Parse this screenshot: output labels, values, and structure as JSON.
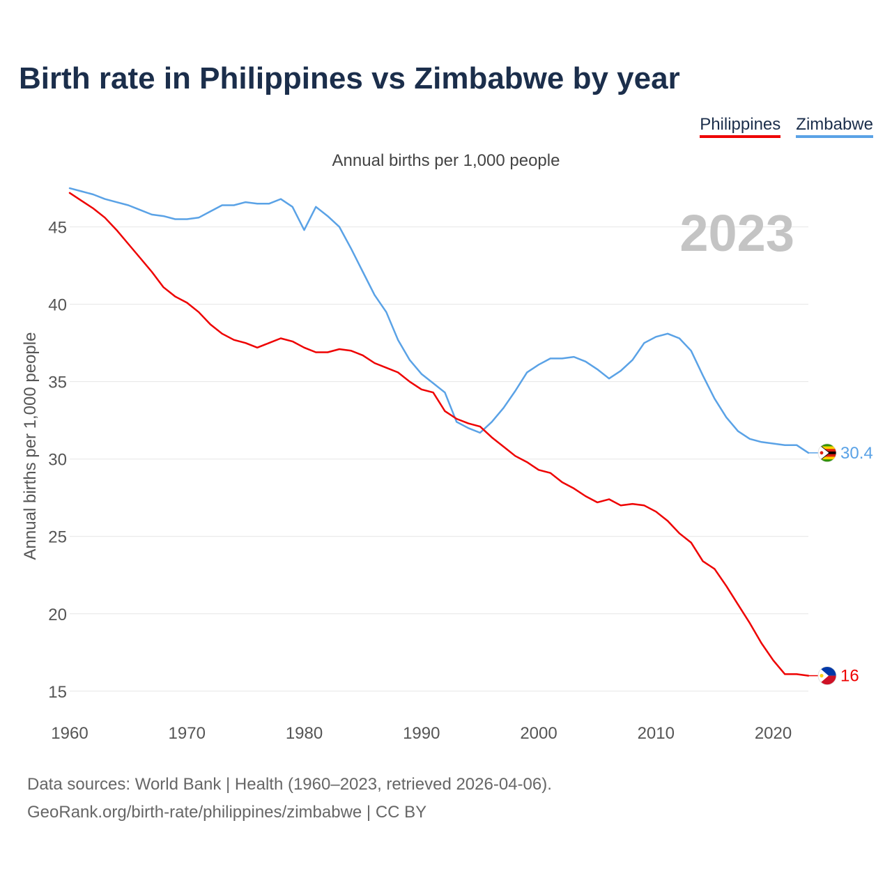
{
  "title": "Birth rate in Philippines vs Zimbabwe by year",
  "legend": {
    "philippines": "Philippines",
    "zimbabwe": "Zimbabwe"
  },
  "subtitle": "Annual births per 1,000 people",
  "year_badge": "2023",
  "source": {
    "line1": "Data sources: World Bank | Health (1960–2023, retrieved 2026-04-06).",
    "line2": "GeoRank.org/birth-rate/philippines/zimbabwe | CC BY"
  },
  "colors": {
    "philippines": "#ee0000",
    "zimbabwe": "#5aa2e6",
    "title": "#1b2e4b",
    "grid": "#e6e6e6",
    "badge": "#c4c4c4"
  },
  "chart_data": {
    "type": "line",
    "title": "Birth rate in Philippines vs Zimbabwe by year",
    "xlabel": "",
    "ylabel": "Annual births per 1,000 people",
    "xlim": [
      1960,
      2023
    ],
    "ylim": [
      14,
      48
    ],
    "x_ticks": [
      1960,
      1970,
      1980,
      1990,
      2000,
      2010,
      2020
    ],
    "y_ticks": [
      15,
      20,
      25,
      30,
      35,
      40,
      45
    ],
    "grid": true,
    "legend_position": "top-right",
    "x": [
      1960,
      1961,
      1962,
      1963,
      1964,
      1965,
      1966,
      1967,
      1968,
      1969,
      1970,
      1971,
      1972,
      1973,
      1974,
      1975,
      1976,
      1977,
      1978,
      1979,
      1980,
      1981,
      1982,
      1983,
      1984,
      1985,
      1986,
      1987,
      1988,
      1989,
      1990,
      1991,
      1992,
      1993,
      1994,
      1995,
      1996,
      1997,
      1998,
      1999,
      2000,
      2001,
      2002,
      2003,
      2004,
      2005,
      2006,
      2007,
      2008,
      2009,
      2010,
      2011,
      2012,
      2013,
      2014,
      2015,
      2016,
      2017,
      2018,
      2019,
      2020,
      2021,
      2022,
      2023
    ],
    "series": [
      {
        "name": "Philippines",
        "end_label": "16",
        "values": [
          47.2,
          46.7,
          46.2,
          45.6,
          44.8,
          43.9,
          43.0,
          42.1,
          41.1,
          40.5,
          40.1,
          39.5,
          38.7,
          38.1,
          37.7,
          37.5,
          37.2,
          37.5,
          37.8,
          37.6,
          37.2,
          36.9,
          36.9,
          37.1,
          37.0,
          36.7,
          36.2,
          35.9,
          35.6,
          35.0,
          34.5,
          34.3,
          33.1,
          32.6,
          32.3,
          32.1,
          31.4,
          30.8,
          30.2,
          29.8,
          29.3,
          29.1,
          28.5,
          28.1,
          27.6,
          27.2,
          27.4,
          27.0,
          27.1,
          27.0,
          26.6,
          26.0,
          25.2,
          24.6,
          23.4,
          22.9,
          21.8,
          20.6,
          19.4,
          18.1,
          17.0,
          16.1,
          16.1,
          16.0
        ]
      },
      {
        "name": "Zimbabwe",
        "end_label": "30.4",
        "values": [
          47.5,
          47.3,
          47.1,
          46.8,
          46.6,
          46.4,
          46.1,
          45.8,
          45.7,
          45.5,
          45.5,
          45.6,
          46.0,
          46.4,
          46.4,
          46.6,
          46.5,
          46.5,
          46.8,
          46.3,
          44.8,
          46.3,
          45.7,
          45.0,
          43.6,
          42.1,
          40.6,
          39.5,
          37.7,
          36.4,
          35.5,
          34.9,
          34.3,
          32.4,
          32.0,
          31.7,
          32.4,
          33.3,
          34.4,
          35.6,
          36.1,
          36.5,
          36.5,
          36.6,
          36.3,
          35.8,
          35.2,
          35.7,
          36.4,
          37.5,
          37.9,
          38.1,
          37.8,
          37.0,
          35.4,
          33.9,
          32.7,
          31.8,
          31.3,
          31.1,
          31.0,
          30.9,
          30.9,
          30.4
        ]
      }
    ]
  }
}
